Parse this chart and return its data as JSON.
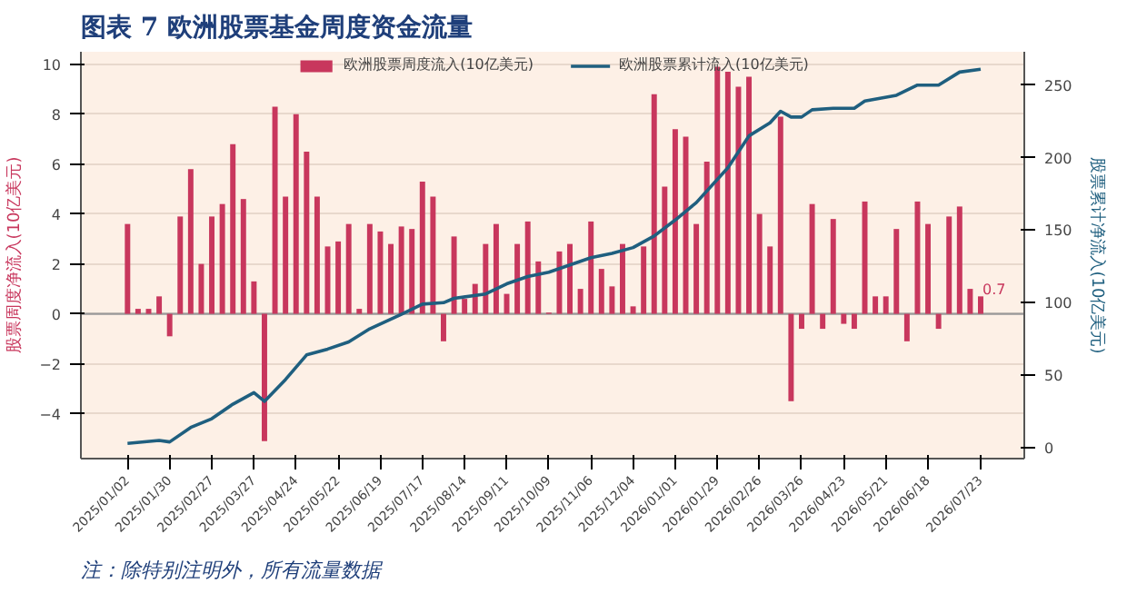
{
  "chart_data": {
    "type": "bar",
    "title": "图表 7   欧洲股票基金周度资金流量",
    "ylabel": "股票周度净流入(10亿美元)",
    "y2label": "股票累计净流入(10亿美元)",
    "annotations": [
      "注：除特别注明外，所有流量数据"
    ],
    "x": [
      "2025-01-02",
      "2025-01-09",
      "2025-01-16",
      "2025-01-23",
      "2025-01-30",
      "2025-02-06",
      "2025-02-13",
      "2025-02-20",
      "2025-02-27",
      "2025-03-06",
      "2025-03-13",
      "2025-03-20",
      "2025-03-27",
      "2025-04-03",
      "2025-04-10",
      "2025-04-17",
      "2025-04-24",
      "2025-05-01",
      "2025-05-08",
      "2025-05-15",
      "2025-05-22",
      "2025-05-29",
      "2025-06-05",
      "2025-06-12",
      "2025-06-19",
      "2025-06-26",
      "2025-07-03",
      "2025-07-10",
      "2025-07-17",
      "2025-07-24",
      "2025-07-31",
      "2025-08-07",
      "2025-08-14",
      "2025-08-21",
      "2025-08-28",
      "2025-09-04",
      "2025-09-11",
      "2025-09-18",
      "2025-09-25",
      "2025-10-02",
      "2025-10-09",
      "2025-10-16",
      "2025-10-23",
      "2025-10-30",
      "2025-11-06",
      "2025-11-13",
      "2025-11-20",
      "2025-11-27",
      "2025-12-04",
      "2025-12-11",
      "2025-12-18",
      "2025-12-25",
      "2026-01-01",
      "2026-01-08",
      "2026-01-15",
      "2026-01-22",
      "2026-01-29",
      "2026-02-05",
      "2026-02-12",
      "2026-02-19",
      "2026-02-26",
      "2026-03-05",
      "2026-03-12",
      "2026-03-19",
      "2026-03-26",
      "2026-04-02",
      "2026-04-09",
      "2026-04-16",
      "2026-04-23",
      "2026-04-30",
      "2026-05-07",
      "2026-05-14",
      "2026-05-21",
      "2026-05-28",
      "2026-06-04",
      "2026-06-11",
      "2026-06-18",
      "2026-06-25",
      "2026-07-02",
      "2026-07-09",
      "2026-07-16",
      "2026-07-23"
    ],
    "series": [
      {
        "name": "欧洲股票周度流入(10亿美元)",
        "color": "#c8375d",
        "values": [
          3.6,
          0.2,
          0.2,
          0.7,
          -0.9,
          3.9,
          5.8,
          2.0,
          3.9,
          4.4,
          6.8,
          4.6,
          1.3,
          -5.1,
          8.3,
          4.7,
          8.0,
          6.5,
          4.7,
          2.7,
          2.9,
          3.6,
          0.2,
          3.6,
          3.3,
          2.8,
          3.5,
          3.4,
          5.3,
          4.7,
          -1.1,
          3.1,
          0.6,
          1.2,
          2.8,
          3.6,
          0.8,
          2.8,
          3.7,
          2.1,
          0.05,
          2.5,
          2.8,
          1.0,
          3.7,
          1.8,
          1.1,
          2.8,
          0.3,
          2.7,
          8.8,
          5.1,
          7.4,
          7.1,
          3.6,
          6.1,
          9.9,
          9.7,
          9.1,
          9.5,
          4.0,
          2.7,
          7.9,
          -3.5,
          -0.6,
          4.4,
          -0.6,
          3.8,
          -0.4,
          -0.6,
          4.5,
          0.7,
          0.7,
          3.4,
          -1.1,
          4.5,
          3.6,
          -0.6,
          3.9,
          4.3,
          1.0,
          0.7
        ],
        "value_labels": [
          null,
          null,
          null,
          null,
          null,
          null,
          null,
          null,
          null,
          null,
          null,
          null,
          null,
          null,
          null,
          null,
          null,
          null,
          null,
          null,
          null,
          null,
          null,
          null,
          null,
          null,
          null,
          null,
          null,
          null,
          null,
          null,
          null,
          null,
          null,
          null,
          null,
          null,
          null,
          null,
          null,
          null,
          null,
          null,
          null,
          null,
          null,
          null,
          null,
          null,
          null,
          null,
          null,
          null,
          null,
          null,
          null,
          null,
          null,
          null,
          null,
          null,
          null,
          null,
          null,
          null,
          null,
          null,
          null,
          null,
          null,
          null,
          null,
          null,
          null,
          null,
          null,
          null,
          null,
          null,
          null,
          "0.7"
        ]
      },
      {
        "name": "欧洲股票累计流入(10亿美元)",
        "type": "line",
        "axis": "y2",
        "color": "#1f5f7f",
        "x": [
          "2025-01-02",
          "2025-01-23",
          "2025-01-30",
          "2025-02-13",
          "2025-02-27",
          "2025-03-13",
          "2025-03-27",
          "2025-04-03",
          "2025-04-17",
          "2025-05-01",
          "2025-05-15",
          "2025-05-29",
          "2025-06-12",
          "2025-07-03",
          "2025-07-17",
          "2025-07-31",
          "2025-08-07",
          "2025-08-28",
          "2025-09-11",
          "2025-09-25",
          "2025-10-09",
          "2025-10-23",
          "2025-11-06",
          "2025-11-20",
          "2025-12-04",
          "2025-12-18",
          "2026-01-01",
          "2026-01-15",
          "2026-02-05",
          "2026-02-19",
          "2026-03-05",
          "2026-03-12",
          "2026-03-19",
          "2026-03-26",
          "2026-04-02",
          "2026-04-16",
          "2026-04-30",
          "2026-05-07",
          "2026-05-28",
          "2026-06-11",
          "2026-06-25",
          "2026-07-09",
          "2026-07-23"
        ],
        "values": [
          3,
          5,
          4,
          14,
          20,
          30,
          38,
          32,
          47,
          64,
          68,
          73,
          82,
          92,
          99,
          100,
          103,
          106,
          113,
          118,
          121,
          126,
          131,
          134,
          138,
          146,
          157,
          169,
          193,
          215,
          224,
          232,
          228,
          228,
          233,
          234,
          234,
          239,
          243,
          250,
          250,
          259,
          261
        ]
      }
    ],
    "xlim": [
      "2024-12-02",
      "2026-08-21"
    ],
    "xticks": [
      {
        "value": "2025-01-02",
        "label": "2025/01/02"
      },
      {
        "value": "2025-01-30",
        "label": "2025/01/30"
      },
      {
        "value": "2025-02-27",
        "label": "2025/02/27"
      },
      {
        "value": "2025-03-27",
        "label": "2025/03/27"
      },
      {
        "value": "2025-04-24",
        "label": "2025/04/24"
      },
      {
        "value": "2025-05-22",
        "label": "2025/05/22"
      },
      {
        "value": "2025-06-19",
        "label": "2025/06/19"
      },
      {
        "value": "2025-07-17",
        "label": "2025/07/17"
      },
      {
        "value": "2025-08-14",
        "label": "2025/08/14"
      },
      {
        "value": "2025-09-11",
        "label": "2025/09/11"
      },
      {
        "value": "2025-10-09",
        "label": "2025/10/09"
      },
      {
        "value": "2025-11-06",
        "label": "2025/11/06"
      },
      {
        "value": "2025-12-04",
        "label": "2025/12/04"
      },
      {
        "value": "2026-01-01",
        "label": "2026/01/01"
      },
      {
        "value": "2026-01-29",
        "label": "2026/01/29"
      },
      {
        "value": "2026-02-26",
        "label": "2026/02/26"
      },
      {
        "value": "2026-03-26",
        "label": "2026/03/26"
      },
      {
        "value": "2026-04-23",
        "label": "2026/04/23"
      },
      {
        "value": "2026-05-21",
        "label": "2026/05/21"
      },
      {
        "value": "2026-06-18",
        "label": "2026/06/18"
      },
      {
        "value": "2026-07-23",
        "label": "2026/07/23"
      }
    ],
    "ylim": [
      -5.8,
      10.5
    ],
    "yticks": [
      -4,
      -2,
      0,
      2,
      4,
      6,
      8,
      10
    ],
    "y2lim": [
      -7.5,
      273
    ],
    "y2ticks": [
      0,
      50,
      100,
      150,
      200,
      250
    ],
    "ref_lines": [
      {
        "axis": "y",
        "value": 0,
        "color": "#999999"
      }
    ],
    "grid": "y",
    "legend": "top"
  }
}
